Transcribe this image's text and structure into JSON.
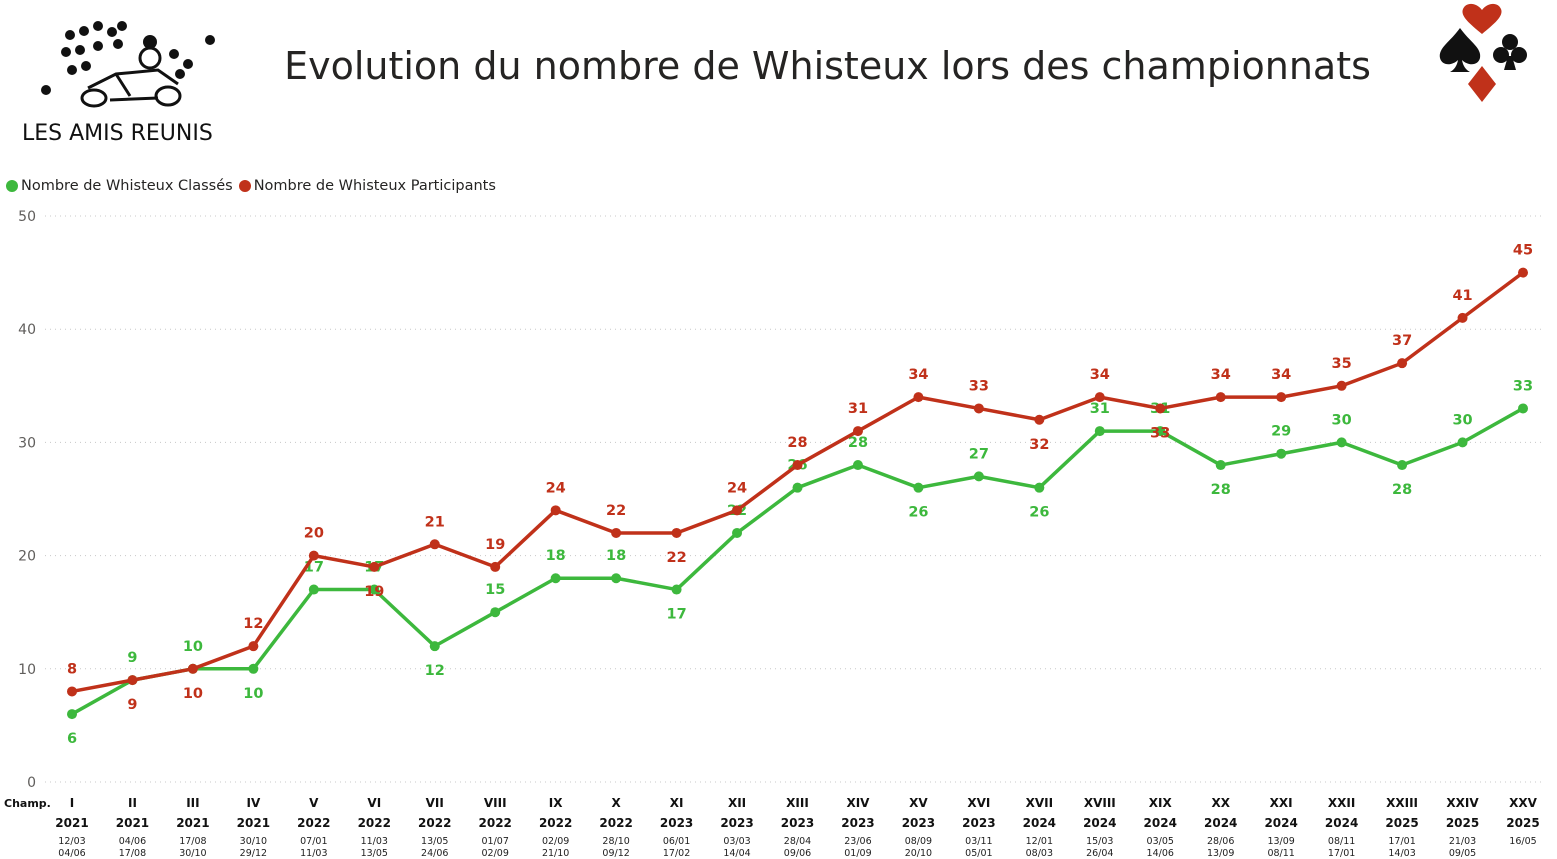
{
  "page": {
    "title": "Evolution du nombre de Whisteux lors des championnats",
    "logo_text": "LES AMIS REUNIS"
  },
  "legend": {
    "items": [
      {
        "label": "Nombre de Whisteux Classés",
        "color": "#3db83d"
      },
      {
        "label": "Nombre de Whisteux Participants",
        "color": "#c0311a"
      }
    ]
  },
  "chart_data": {
    "type": "line",
    "x_axis_prefix_label": "Champ.",
    "categories": [
      {
        "roman": "I",
        "year": "2021",
        "start": "12/03",
        "end": "04/06"
      },
      {
        "roman": "II",
        "year": "2021",
        "start": "04/06",
        "end": "17/08"
      },
      {
        "roman": "III",
        "year": "2021",
        "start": "17/08",
        "end": "30/10"
      },
      {
        "roman": "IV",
        "year": "2021",
        "start": "30/10",
        "end": "29/12"
      },
      {
        "roman": "V",
        "year": "2022",
        "start": "07/01",
        "end": "11/03"
      },
      {
        "roman": "VI",
        "year": "2022",
        "start": "11/03",
        "end": "13/05"
      },
      {
        "roman": "VII",
        "year": "2022",
        "start": "13/05",
        "end": "24/06"
      },
      {
        "roman": "VIII",
        "year": "2022",
        "start": "01/07",
        "end": "02/09"
      },
      {
        "roman": "IX",
        "year": "2022",
        "start": "02/09",
        "end": "21/10"
      },
      {
        "roman": "X",
        "year": "2022",
        "start": "28/10",
        "end": "09/12"
      },
      {
        "roman": "XI",
        "year": "2023",
        "start": "06/01",
        "end": "17/02"
      },
      {
        "roman": "XII",
        "year": "2023",
        "start": "03/03",
        "end": "14/04"
      },
      {
        "roman": "XIII",
        "year": "2023",
        "start": "28/04",
        "end": "09/06"
      },
      {
        "roman": "XIV",
        "year": "2023",
        "start": "23/06",
        "end": "01/09"
      },
      {
        "roman": "XV",
        "year": "2023",
        "start": "08/09",
        "end": "20/10"
      },
      {
        "roman": "XVI",
        "year": "2023",
        "start": "03/11",
        "end": "05/01"
      },
      {
        "roman": "XVII",
        "year": "2024",
        "start": "12/01",
        "end": "08/03"
      },
      {
        "roman": "XVIII",
        "year": "2024",
        "start": "15/03",
        "end": "26/04"
      },
      {
        "roman": "XIX",
        "year": "2024",
        "start": "03/05",
        "end": "14/06"
      },
      {
        "roman": "XX",
        "year": "2024",
        "start": "28/06",
        "end": "13/09"
      },
      {
        "roman": "XXI",
        "year": "2024",
        "start": "13/09",
        "end": "08/11"
      },
      {
        "roman": "XXII",
        "year": "2024",
        "start": "08/11",
        "end": "17/01"
      },
      {
        "roman": "XXIII",
        "year": "2025",
        "start": "17/01",
        "end": "14/03"
      },
      {
        "roman": "XXIV",
        "year": "2025",
        "start": "21/03",
        "end": "09/05"
      },
      {
        "roman": "XXV",
        "year": "2025",
        "start": "16/05",
        "end": ""
      }
    ],
    "series": [
      {
        "name": "Nombre de Whisteux Classés",
        "color": "#3db83d",
        "values": [
          6,
          9,
          10,
          10,
          17,
          17,
          12,
          15,
          18,
          18,
          17,
          22,
          26,
          28,
          26,
          27,
          26,
          31,
          31,
          28,
          29,
          30,
          28,
          30,
          33
        ],
        "label_pos": [
          "below",
          "above",
          "above",
          "below",
          "above",
          "above",
          "below",
          "above",
          "above",
          "above",
          "below",
          "above",
          "above",
          "above",
          "below",
          "above",
          "below",
          "above",
          "above",
          "below",
          "above",
          "above",
          "below",
          "above",
          "above"
        ]
      },
      {
        "name": "Nombre de Whisteux Participants",
        "color": "#c0311a",
        "values": [
          8,
          9,
          10,
          12,
          20,
          19,
          21,
          19,
          24,
          22,
          22,
          24,
          28,
          31,
          34,
          33,
          32,
          34,
          33,
          34,
          34,
          35,
          37,
          41,
          45
        ],
        "label_pos": [
          "above",
          "below",
          "below",
          "above",
          "above",
          "below",
          "above",
          "above",
          "above",
          "above",
          "below",
          "above",
          "above",
          "above",
          "above",
          "above",
          "below",
          "above",
          "below",
          "above",
          "above",
          "above",
          "above",
          "above",
          "above"
        ]
      }
    ],
    "ylim": [
      0,
      50
    ],
    "yticks": [
      0,
      10,
      20,
      30,
      40,
      50
    ],
    "grid": true,
    "legend_position": "top-left"
  }
}
